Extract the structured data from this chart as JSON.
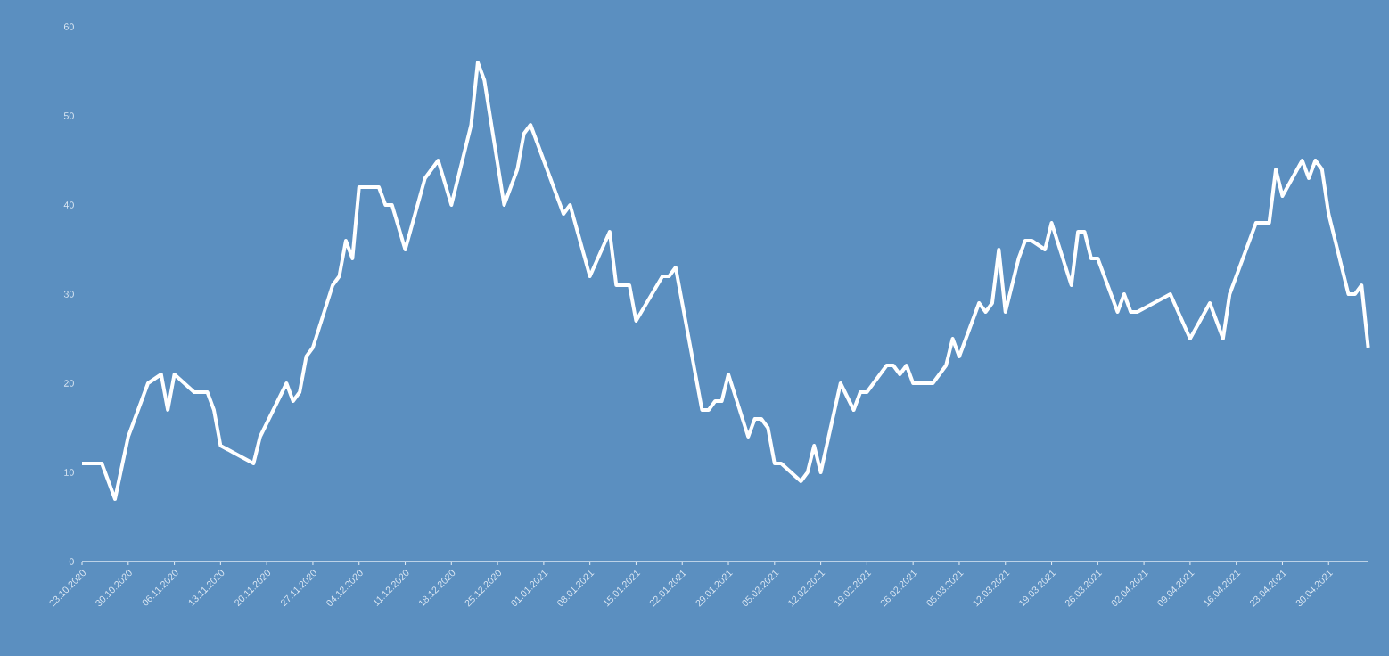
{
  "chart_data": {
    "type": "line",
    "color": "#ffffff",
    "x": [
      "2020-10-23",
      "2020-10-26",
      "2020-10-28",
      "2020-10-30",
      "2020-11-02",
      "2020-11-04",
      "2020-11-05",
      "2020-11-06",
      "2020-11-09",
      "2020-11-11",
      "2020-11-12",
      "2020-11-13",
      "2020-11-18",
      "2020-11-19",
      "2020-11-23",
      "2020-11-24",
      "2020-11-25",
      "2020-11-26",
      "2020-11-27",
      "2020-11-30",
      "2020-12-01",
      "2020-12-02",
      "2020-12-03",
      "2020-12-04",
      "2020-12-07",
      "2020-12-08",
      "2020-12-09",
      "2020-12-11",
      "2020-12-14",
      "2020-12-16",
      "2020-12-18",
      "2020-12-21",
      "2020-12-22",
      "2020-12-23",
      "2020-12-26",
      "2020-12-28",
      "2020-12-29",
      "2020-12-30",
      "2021-01-04",
      "2021-01-05",
      "2021-01-08",
      "2021-01-11",
      "2021-01-12",
      "2021-01-14",
      "2021-01-15",
      "2021-01-19",
      "2021-01-20",
      "2021-01-21",
      "2021-01-25",
      "2021-01-26",
      "2021-01-27",
      "2021-01-28",
      "2021-01-29",
      "2021-02-01",
      "2021-02-02",
      "2021-02-03",
      "2021-02-04",
      "2021-02-05",
      "2021-02-06",
      "2021-02-09",
      "2021-02-10",
      "2021-02-11",
      "2021-02-12",
      "2021-02-15",
      "2021-02-17",
      "2021-02-18",
      "2021-02-19",
      "2021-02-22",
      "2021-02-23",
      "2021-02-24",
      "2021-02-25",
      "2021-02-26",
      "2021-03-01",
      "2021-03-03",
      "2021-03-04",
      "2021-03-05",
      "2021-03-08",
      "2021-03-09",
      "2021-03-10",
      "2021-03-11",
      "2021-03-12",
      "2021-03-14",
      "2021-03-15",
      "2021-03-16",
      "2021-03-18",
      "2021-03-19",
      "2021-03-22",
      "2021-03-23",
      "2021-03-24",
      "2021-03-25",
      "2021-03-26",
      "2021-03-29",
      "2021-03-30",
      "2021-03-31",
      "2021-04-01",
      "2021-04-06",
      "2021-04-09",
      "2021-04-12",
      "2021-04-14",
      "2021-04-15",
      "2021-04-19",
      "2021-04-21",
      "2021-04-22",
      "2021-04-23",
      "2021-04-26",
      "2021-04-27",
      "2021-04-28",
      "2021-04-29",
      "2021-04-30",
      "2021-05-03",
      "2021-05-04",
      "2021-05-05",
      "2021-05-06"
    ],
    "values": [
      11,
      11,
      7,
      14,
      20,
      21,
      17,
      21,
      19,
      19,
      17,
      13,
      11,
      14,
      20,
      18,
      19,
      23,
      24,
      31,
      32,
      36,
      34,
      42,
      42,
      40,
      40,
      35,
      43,
      45,
      40,
      49,
      56,
      54,
      40,
      44,
      48,
      49,
      39,
      40,
      32,
      37,
      31,
      31,
      27,
      32,
      32,
      33,
      17,
      17,
      18,
      18,
      21,
      14,
      16,
      16,
      15,
      11,
      11,
      9,
      10,
      13,
      10,
      20,
      17,
      19,
      19,
      22,
      22,
      21,
      22,
      20,
      20,
      22,
      25,
      23,
      29,
      28,
      29,
      35,
      28,
      34,
      36,
      36,
      35,
      38,
      31,
      37,
      37,
      34,
      34,
      28,
      30,
      28,
      28,
      30,
      25,
      29,
      25,
      30,
      38,
      38,
      44,
      41,
      45,
      43,
      45,
      44,
      39,
      30,
      30,
      31,
      24
    ],
    "xlim": [
      "2020-10-23",
      "2021-05-06"
    ],
    "ylim": [
      0,
      60
    ],
    "yticks": [
      0,
      10,
      20,
      30,
      40,
      50,
      60
    ],
    "xticks": [
      {
        "value": "2020-10-23",
        "label": "23.10.2020"
      },
      {
        "value": "2020-10-30",
        "label": "30.10.2020"
      },
      {
        "value": "2020-11-06",
        "label": "06.11.2020"
      },
      {
        "value": "2020-11-13",
        "label": "13.11.2020"
      },
      {
        "value": "2020-11-20",
        "label": "20.11.2020"
      },
      {
        "value": "2020-11-27",
        "label": "27.11.2020"
      },
      {
        "value": "2020-12-04",
        "label": "04.12.2020"
      },
      {
        "value": "2020-12-11",
        "label": "11.12.2020"
      },
      {
        "value": "2020-12-18",
        "label": "18.12.2020"
      },
      {
        "value": "2020-12-25",
        "label": "25.12.2020"
      },
      {
        "value": "2021-01-01",
        "label": "01.01.2021"
      },
      {
        "value": "2021-01-08",
        "label": "08.01.2021"
      },
      {
        "value": "2021-01-15",
        "label": "15.01.2021"
      },
      {
        "value": "2021-01-22",
        "label": "22.01.2021"
      },
      {
        "value": "2021-01-29",
        "label": "29.01.2021"
      },
      {
        "value": "2021-02-05",
        "label": "05.02.2021"
      },
      {
        "value": "2021-02-12",
        "label": "12.02.2021"
      },
      {
        "value": "2021-02-19",
        "label": "19.02.2021"
      },
      {
        "value": "2021-02-26",
        "label": "26.02.2021"
      },
      {
        "value": "2021-03-05",
        "label": "05.03.2021"
      },
      {
        "value": "2021-03-12",
        "label": "12.03.2021"
      },
      {
        "value": "2021-03-19",
        "label": "19.03.2021"
      },
      {
        "value": "2021-03-26",
        "label": "26.03.2021"
      },
      {
        "value": "2021-04-02",
        "label": "02.04.2021"
      },
      {
        "value": "2021-04-09",
        "label": "09.04.2021"
      },
      {
        "value": "2021-04-16",
        "label": "16.04.2021"
      },
      {
        "value": "2021-04-23",
        "label": "23.04.2021"
      },
      {
        "value": "2021-04-30",
        "label": "30.04.2021"
      }
    ]
  }
}
